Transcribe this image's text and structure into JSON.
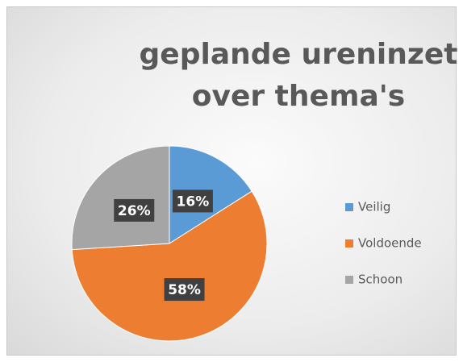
{
  "chart_data": {
    "type": "pie",
    "title": "geplande ureninzet over thema's",
    "categories": [
      "Veilig",
      "Voldoende",
      "Schoon"
    ],
    "values": [
      16,
      58,
      26
    ],
    "value_labels": [
      "16%",
      "58%",
      "26%"
    ],
    "colors": [
      "#5b9bd5",
      "#ed7d31",
      "#a5a5a5"
    ],
    "legend": "right"
  }
}
